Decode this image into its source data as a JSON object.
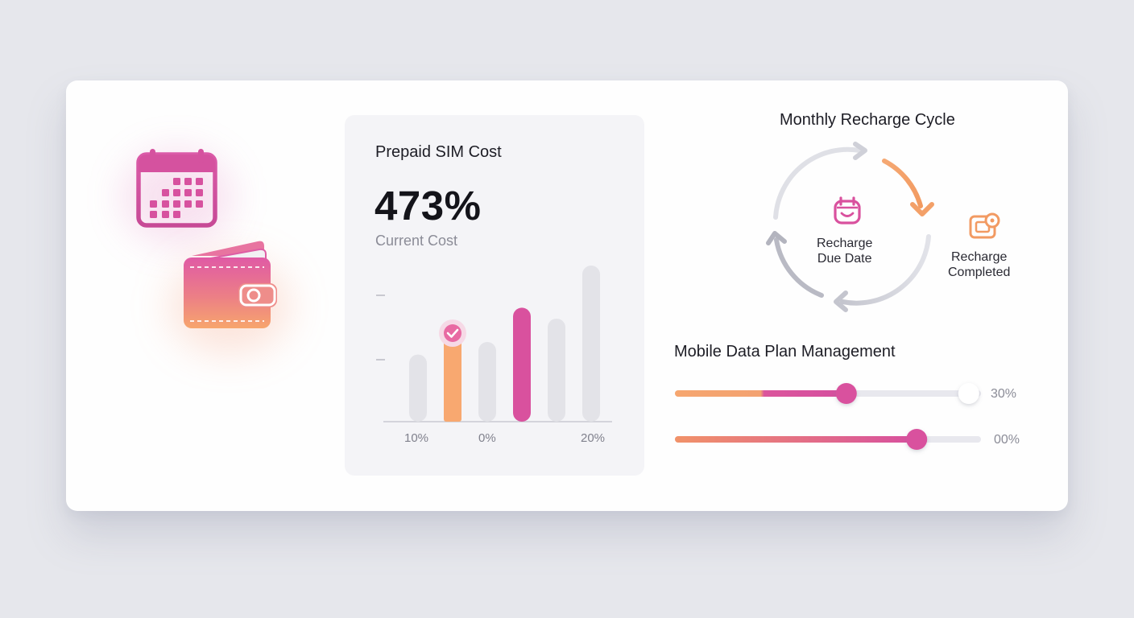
{
  "cost_card": {
    "title": "Prepaid SIM Cost",
    "value": "473%",
    "value_label": "Current Cost",
    "tick_labels": [
      "10%",
      "0%",
      "20%"
    ]
  },
  "chart_data": {
    "type": "bar",
    "categories": [
      "",
      "",
      "",
      "",
      "",
      ""
    ],
    "values": [
      0.43,
      0.57,
      0.51,
      0.73,
      0.66,
      1.0
    ],
    "highlight": {
      "peach": 1,
      "magenta": 3
    },
    "x_tick_labels": [
      "10%",
      "0%",
      "20%"
    ],
    "xlabel": "",
    "ylabel": ""
  },
  "cycle": {
    "title": "Monthly Recharge Cycle",
    "center_label_line1": "Recharge",
    "center_label_line2": "Due Date",
    "side_label_line1": "Recharge",
    "side_label_line2": "Completed"
  },
  "data_plan": {
    "title": "Mobile Data Plan Management",
    "sliders": [
      {
        "value_text": "30%",
        "fill": 0.56,
        "second_knob": 0.96
      },
      {
        "value_text": "00%",
        "fill": 0.79
      }
    ]
  },
  "icons": {
    "calendar": "calendar-icon",
    "wallet": "wallet-icon",
    "check": "check-icon",
    "due_date": "calendar-face-icon",
    "completed": "device-icon"
  },
  "colors": {
    "magenta": "#d9519e",
    "peach": "#f8a870",
    "gray_bar": "#e3e3e8",
    "track": "#e8e8ee"
  }
}
